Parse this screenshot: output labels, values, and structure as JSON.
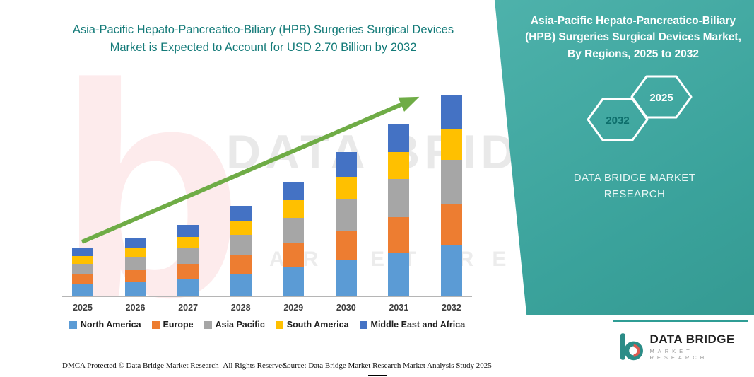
{
  "left": {
    "title": "Asia-Pacific Hepato-Pancreatico-Biliary (HPB) Surgeries Surgical Devices Market is Expected to Account for USD 2.70 Billion by 2032"
  },
  "right_panel": {
    "title": "Asia-Pacific Hepato-Pancreatico-Biliary (HPB) Surgeries Surgical Devices Market, By Regions, 2025 to 2032",
    "hexagon_back_label": "2032",
    "hexagon_front_label": "2025",
    "brand_line1": "DATA BRIDGE MARKET",
    "brand_line2": "RESEARCH",
    "bg_color": "#3FA7A0"
  },
  "watermark": {
    "letter": "b",
    "line1": "DATA BRIDGE",
    "line2": "MARKET RESEARCH"
  },
  "logo": {
    "name": "DATA BRIDGE",
    "subtitle": "MARKET RESEARCH"
  },
  "footer": {
    "dmca": "DMCA Protected © Data Bridge Market Research-  All Rights Reserved.",
    "source": "Source: Data Bridge Market Research  Market Analysis Study 2025"
  },
  "chart_data": {
    "type": "bar",
    "stacked": true,
    "title": "Asia-Pacific Hepato-Pancreatico-Biliary (HPB) Surgeries Surgical Devices Market is Expected to Account for USD 2.70 Billion by 2032",
    "value_unit": "USD Billion",
    "categories": [
      "2025",
      "2026",
      "2027",
      "2028",
      "2029",
      "2030",
      "2031",
      "2032"
    ],
    "series": [
      {
        "name": "North America",
        "color": "#5B9BD5",
        "values": [
          0.16,
          0.19,
          0.24,
          0.3,
          0.39,
          0.48,
          0.58,
          0.68
        ]
      },
      {
        "name": "Europe",
        "color": "#ED7D31",
        "values": [
          0.13,
          0.16,
          0.2,
          0.25,
          0.32,
          0.4,
          0.48,
          0.56
        ]
      },
      {
        "name": "Asia Pacific",
        "color": "#A6A6A6",
        "values": [
          0.14,
          0.17,
          0.21,
          0.27,
          0.34,
          0.42,
          0.51,
          0.59
        ]
      },
      {
        "name": "South America",
        "color": "#FFC000",
        "values": [
          0.1,
          0.12,
          0.15,
          0.19,
          0.24,
          0.3,
          0.36,
          0.42
        ]
      },
      {
        "name": "Middle East and Africa",
        "color": "#4472C4",
        "values": [
          0.1,
          0.13,
          0.16,
          0.2,
          0.25,
          0.33,
          0.38,
          0.45
        ]
      }
    ],
    "totals": [
      0.63,
      0.77,
      0.96,
      1.21,
      1.54,
      1.93,
      2.31,
      2.7
    ],
    "ylim": [
      0,
      2.8
    ],
    "xlabel": "",
    "ylabel": "",
    "y_axis_visible": false,
    "grid": false,
    "legend_position": "bottom",
    "annotation": {
      "trend_arrow": true,
      "arrow_color": "#6FAC46"
    }
  }
}
